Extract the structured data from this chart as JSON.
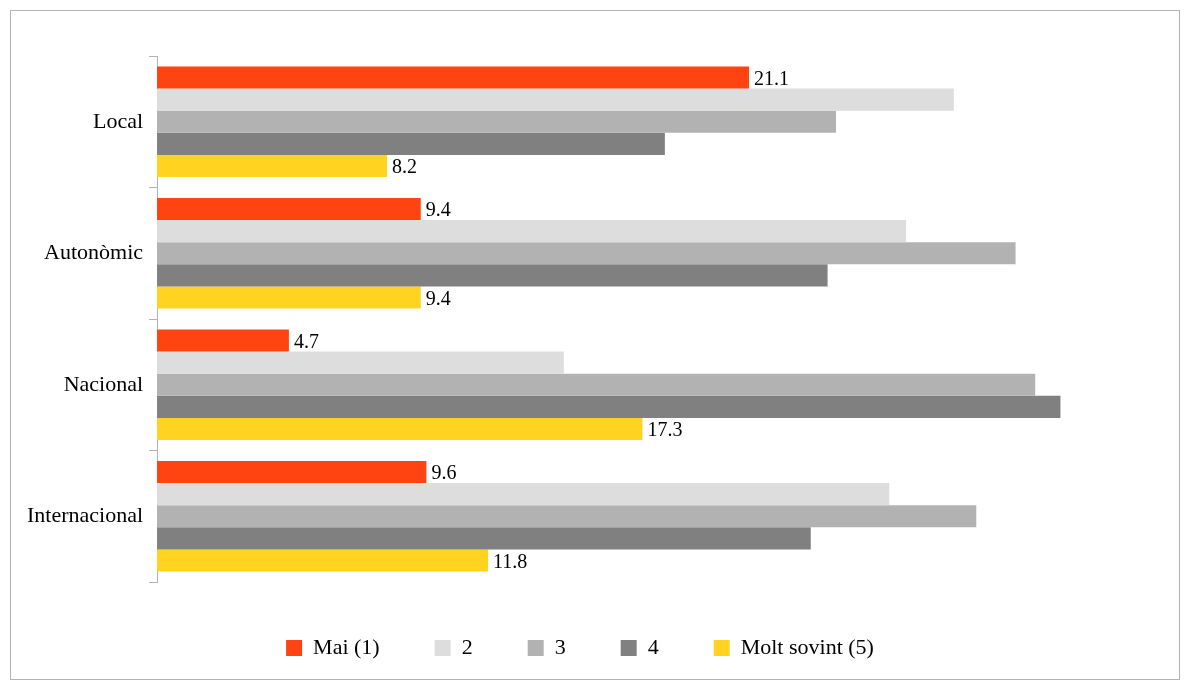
{
  "chart_data": {
    "type": "bar",
    "orientation": "horizontal",
    "categories": [
      "Local",
      "Autonòmic",
      "Nacional",
      "Internacional"
    ],
    "series": [
      {
        "name": "Mai (1)",
        "color": "#ff4411",
        "values": [
          21.1,
          9.4,
          4.7,
          9.6
        ],
        "value_labels": [
          "21.1",
          "9.4",
          "4.7",
          "9.6"
        ]
      },
      {
        "name": "2",
        "color": "#dddddd",
        "values": [
          28.4,
          26.7,
          14.5,
          26.1
        ]
      },
      {
        "name": "3",
        "color": "#b2b2b2",
        "values": [
          24.2,
          30.6,
          31.3,
          29.2
        ]
      },
      {
        "name": "4",
        "color": "#808080",
        "values": [
          18.1,
          23.9,
          32.2,
          23.3
        ]
      },
      {
        "name": "Molt sovint (5)",
        "color": "#ffd320",
        "values": [
          8.2,
          9.4,
          17.3,
          11.8
        ],
        "value_labels": [
          "8.2",
          "9.4",
          "17.3",
          "11.8"
        ]
      }
    ],
    "tick_labels": "y",
    "grid": false,
    "legend": "bottom"
  }
}
